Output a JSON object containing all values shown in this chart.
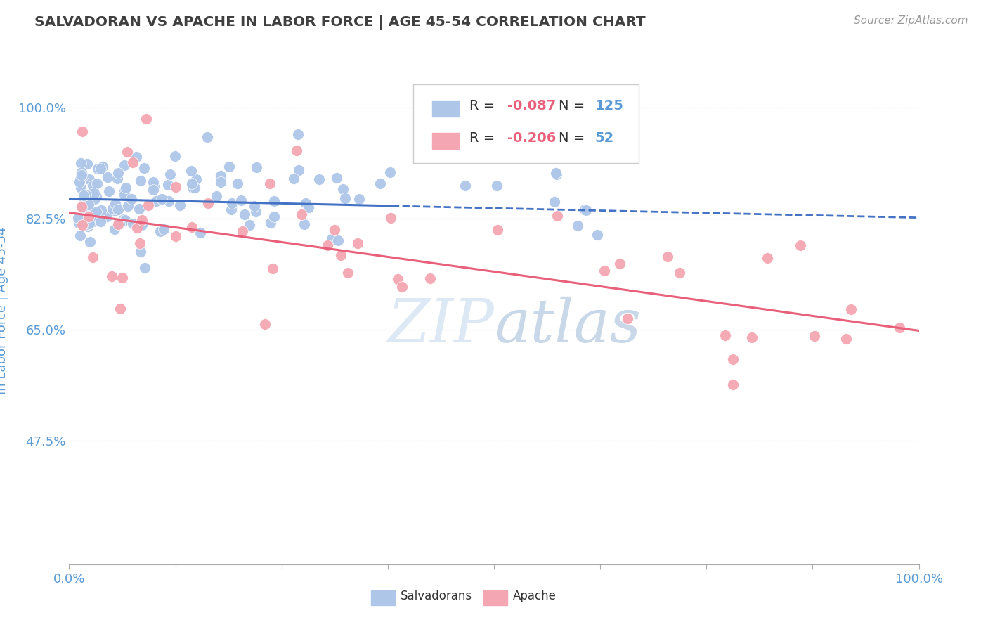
{
  "title": "SALVADORAN VS APACHE IN LABOR FORCE | AGE 45-54 CORRELATION CHART",
  "source_text": "Source: ZipAtlas.com",
  "ylabel": "In Labor Force | Age 45-54",
  "xlim": [
    0.0,
    1.0
  ],
  "ylim": [
    0.28,
    1.08
  ],
  "yticks": [
    0.475,
    0.65,
    0.825,
    1.0
  ],
  "ytick_labels": [
    "47.5%",
    "65.0%",
    "82.5%",
    "100.0%"
  ],
  "xtick_labels_left": "0.0%",
  "xtick_labels_right": "100.0%",
  "blue_R": -0.087,
  "blue_N": 125,
  "pink_R": -0.206,
  "pink_N": 52,
  "blue_color": "#aec6e8",
  "pink_color": "#f4a7b2",
  "blue_line_color": "#4472c4",
  "pink_line_color": "#e8607a",
  "title_color": "#404040",
  "axis_label_color": "#5b9bd5",
  "legend_R_color": "#e8607a",
  "legend_N_color": "#5b9bd5",
  "watermark_color": "#d0e8f5",
  "background_color": "#ffffff",
  "grid_color": "#d0d0d0",
  "blue_line_start_x": 0.0,
  "blue_line_start_y": 0.856,
  "blue_line_mid_x": 0.38,
  "blue_line_mid_y": 0.844,
  "blue_line_end_x": 1.0,
  "blue_line_end_y": 0.826,
  "pink_line_start_x": 0.0,
  "pink_line_start_y": 0.834,
  "pink_line_end_x": 1.0,
  "pink_line_end_y": 0.648
}
